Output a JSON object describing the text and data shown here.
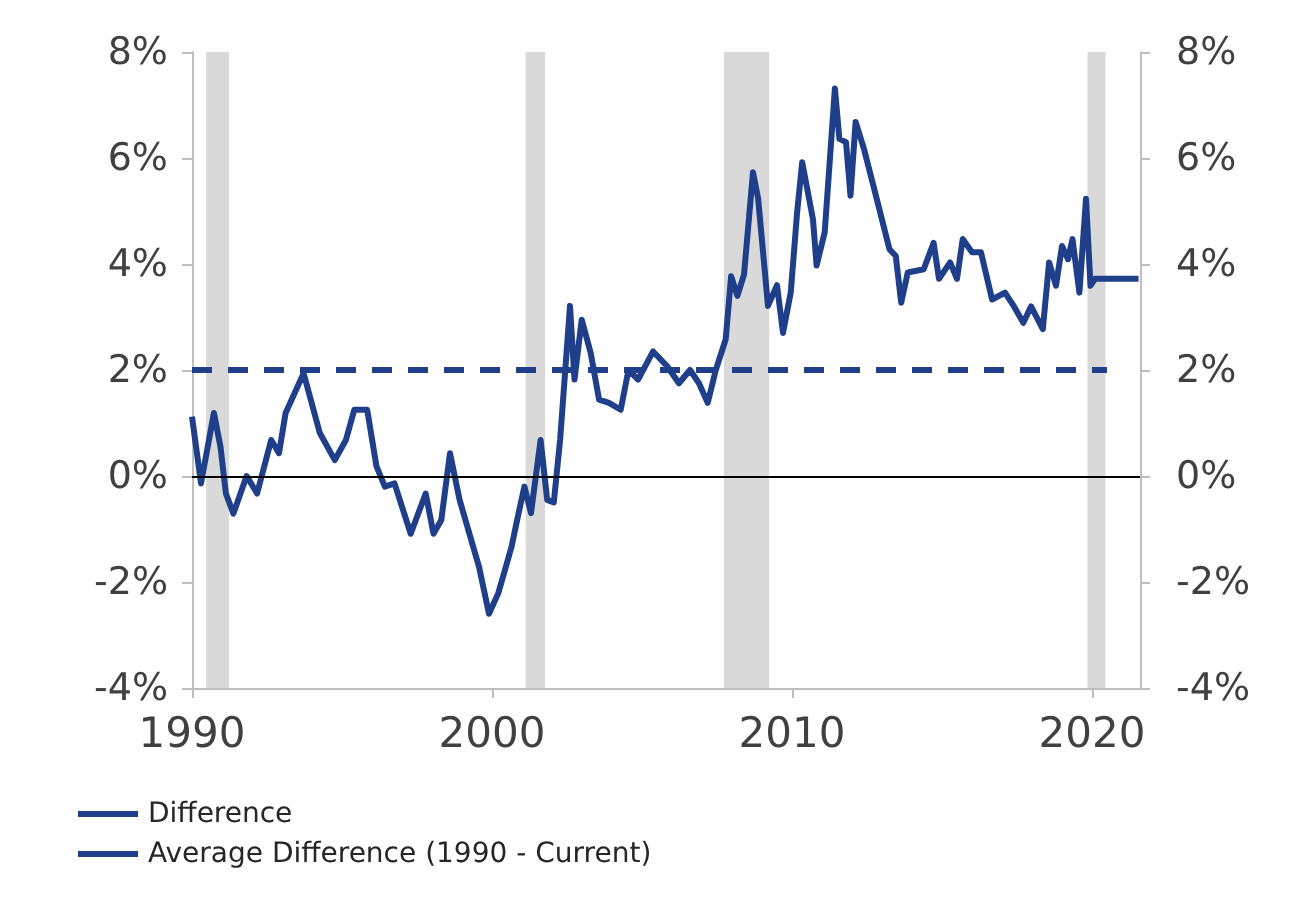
{
  "chart_data": {
    "type": "line",
    "series": [
      {
        "name": "Difference",
        "color": "#1f3f8a",
        "line_style": "solid",
        "x": [
          1990.0,
          1990.3,
          1990.73,
          1990.95,
          1991.13,
          1991.38,
          1991.82,
          1992.17,
          1992.64,
          1992.9,
          1993.12,
          1993.72,
          1994.26,
          1994.76,
          1995.13,
          1995.41,
          1995.84,
          1996.15,
          1996.43,
          1996.75,
          1997.29,
          1997.79,
          1998.05,
          1998.31,
          1998.6,
          1998.92,
          1999.57,
          1999.9,
          2000.21,
          2000.65,
          2000.86,
          2001.08,
          2001.3,
          2001.62,
          2001.84,
          2002.06,
          2002.27,
          2002.6,
          2002.75,
          2002.99,
          2003.29,
          2003.57,
          2003.9,
          2004.29,
          2004.55,
          2004.87,
          2005.37,
          2005.84,
          2006.23,
          2006.6,
          2006.9,
          2007.19,
          2007.46,
          2007.79,
          2007.97,
          2008.18,
          2008.4,
          2008.7,
          2008.87,
          2009.2,
          2009.5,
          2009.7,
          2009.96,
          2010.17,
          2010.34,
          2010.7,
          2010.82,
          2011.09,
          2011.43,
          2011.58,
          2011.8,
          2011.95,
          2012.12,
          2012.4,
          2012.77,
          2013.25,
          2013.46,
          2013.64,
          2013.86,
          2014.39,
          2014.72,
          2014.9,
          2015.27,
          2015.5,
          2015.69,
          2016.0,
          2016.3,
          2016.67,
          2017.1,
          2017.4,
          2017.71,
          2017.97,
          2018.36,
          2018.57,
          2018.8,
          2019.0,
          2019.2,
          2019.35,
          2019.58,
          2019.8,
          2019.95,
          2020.1,
          2021.55
        ],
        "values": [
          1.12,
          -0.14,
          1.19,
          0.55,
          -0.33,
          -0.71,
          0,
          -0.33,
          0.68,
          0.43,
          1.19,
          1.94,
          0.81,
          0.3,
          0.68,
          1.25,
          1.25,
          0.18,
          -0.2,
          -0.14,
          -1.09,
          -0.33,
          -1.09,
          -0.83,
          0.43,
          -0.45,
          -1.72,
          -2.6,
          -2.21,
          -1.34,
          -0.77,
          -0.2,
          -0.7,
          0.68,
          -0.45,
          -0.5,
          0.68,
          3.21,
          1.82,
          2.95,
          2.32,
          1.44,
          1.38,
          1.25,
          2.0,
          1.82,
          2.35,
          2.07,
          1.75,
          2.0,
          1.75,
          1.38,
          2.0,
          2.58,
          3.77,
          3.4,
          3.8,
          5.73,
          5.24,
          3.21,
          3.6,
          2.7,
          3.47,
          4.97,
          5.92,
          4.84,
          3.97,
          4.6,
          7.31,
          6.36,
          6.3,
          5.29,
          6.68,
          6.17,
          5.35,
          4.28,
          4.15,
          3.27,
          3.84,
          3.9,
          4.4,
          3.72,
          4.03,
          3.72,
          4.47,
          4.22,
          4.22,
          3.33,
          3.46,
          3.2,
          2.89,
          3.2,
          2.77,
          4.03,
          3.59,
          4.34,
          4.09,
          4.47,
          3.46,
          5.23,
          3.59,
          3.72,
          3.72
        ]
      },
      {
        "name": "Average Difference (1990 - Current)",
        "color": "#1f3f8a",
        "line_style": "dashed",
        "x": [
          1990,
          2020.5
        ],
        "values": [
          2,
          2
        ]
      }
    ],
    "xlim": [
      1990,
      2021.6
    ],
    "xticks": [
      1990,
      2000,
      2010,
      2020
    ],
    "ylim": [
      -4,
      8
    ],
    "yticks": [
      {
        "value": -4,
        "label": "-4%"
      },
      {
        "value": -2,
        "label": "-2%"
      },
      {
        "value": 0,
        "label": "0%"
      },
      {
        "value": 2,
        "label": "2%"
      },
      {
        "value": 4,
        "label": "4%"
      },
      {
        "value": 6,
        "label": "6%"
      },
      {
        "value": 8,
        "label": "8%"
      }
    ],
    "y2lim": [
      -4,
      8
    ],
    "y2ticks": [
      {
        "value": -4,
        "label": "-4%"
      },
      {
        "value": -2,
        "label": "-2%"
      },
      {
        "value": 0,
        "label": "0%"
      },
      {
        "value": 2,
        "label": "2%"
      },
      {
        "value": 4,
        "label": "4%"
      },
      {
        "value": 6,
        "label": "6%"
      },
      {
        "value": 8,
        "label": "8%"
      }
    ],
    "ref_lines": [
      {
        "axis": "y",
        "value": 0,
        "color": "#000000",
        "line_style": "solid"
      }
    ],
    "bands": [
      {
        "axis": "x",
        "from": 1990.47,
        "to": 1991.23,
        "color": "#d9d9d9"
      },
      {
        "axis": "x",
        "from": 2001.12,
        "to": 2001.77,
        "color": "#d9d9d9"
      },
      {
        "axis": "x",
        "from": 2007.73,
        "to": 2009.24,
        "color": "#d9d9d9"
      },
      {
        "axis": "x",
        "from": 2019.85,
        "to": 2020.45,
        "color": "#d9d9d9"
      }
    ],
    "legend": "bottom left",
    "grid": false,
    "marker": "none"
  }
}
